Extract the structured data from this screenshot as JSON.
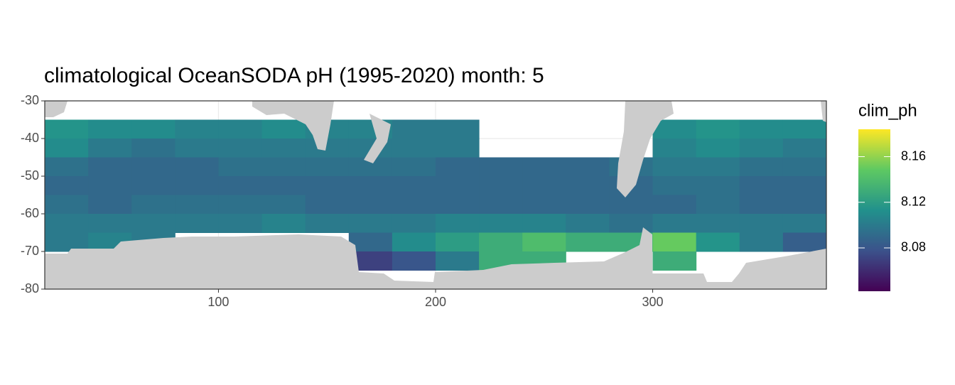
{
  "chart_data": {
    "type": "heatmap",
    "title": "climatological OceanSODA pH (1995-2020) month: 5",
    "x": [
      30,
      50,
      70,
      90,
      110,
      130,
      150,
      170,
      190,
      210,
      230,
      250,
      270,
      290,
      310,
      330,
      350,
      370
    ],
    "y": [
      -37.5,
      -42.5,
      -47.5,
      -52.5,
      -57.5,
      -62.5,
      -67.5,
      -72.5
    ],
    "values": [
      [
        8.115,
        8.11,
        8.11,
        8.105,
        8.105,
        8.11,
        8.105,
        8.105,
        8.1,
        8.1,
        null,
        null,
        null,
        null,
        8.11,
        8.115,
        8.11,
        8.11
      ],
      [
        8.11,
        8.1,
        8.095,
        8.1,
        8.1,
        8.1,
        8.1,
        8.1,
        8.1,
        8.1,
        null,
        null,
        null,
        null,
        8.105,
        8.11,
        8.105,
        8.1
      ],
      [
        8.095,
        8.09,
        8.09,
        8.09,
        8.095,
        8.095,
        8.095,
        8.095,
        8.095,
        8.09,
        8.09,
        8.09,
        8.09,
        8.095,
        8.1,
        8.1,
        8.095,
        8.095
      ],
      [
        8.09,
        8.09,
        8.09,
        8.09,
        8.09,
        8.09,
        8.09,
        8.09,
        8.09,
        8.09,
        8.09,
        8.09,
        8.09,
        8.09,
        8.095,
        8.095,
        8.09,
        8.09
      ],
      [
        8.095,
        8.09,
        8.095,
        8.095,
        8.095,
        8.095,
        8.09,
        8.09,
        8.09,
        8.09,
        8.09,
        8.09,
        8.09,
        8.09,
        8.09,
        8.095,
        8.09,
        8.09
      ],
      [
        8.1,
        8.1,
        8.1,
        8.1,
        8.1,
        8.105,
        8.1,
        8.1,
        8.1,
        8.105,
        8.105,
        8.105,
        8.1,
        8.095,
        8.1,
        8.1,
        8.1,
        8.1
      ],
      [
        8.1,
        8.105,
        8.1,
        null,
        null,
        null,
        null,
        8.09,
        8.11,
        8.12,
        8.13,
        8.14,
        8.13,
        8.13,
        8.15,
        8.115,
        8.1,
        8.085
      ],
      [
        null,
        null,
        null,
        null,
        null,
        null,
        null,
        8.07,
        8.08,
        8.1,
        8.13,
        8.13,
        null,
        null,
        8.13,
        null,
        null,
        null
      ]
    ],
    "xlim": [
      20,
      380
    ],
    "ylim": [
      -80,
      -30
    ],
    "xticks": [
      100,
      200,
      300
    ],
    "yticks": [
      -30,
      -40,
      -50,
      -60,
      -70,
      -80
    ],
    "grid": true,
    "colormap": "viridis",
    "legend_title": "clim_ph",
    "clim": [
      8.042,
      8.184
    ],
    "cticks": [
      8.08,
      8.12,
      8.16
    ]
  }
}
